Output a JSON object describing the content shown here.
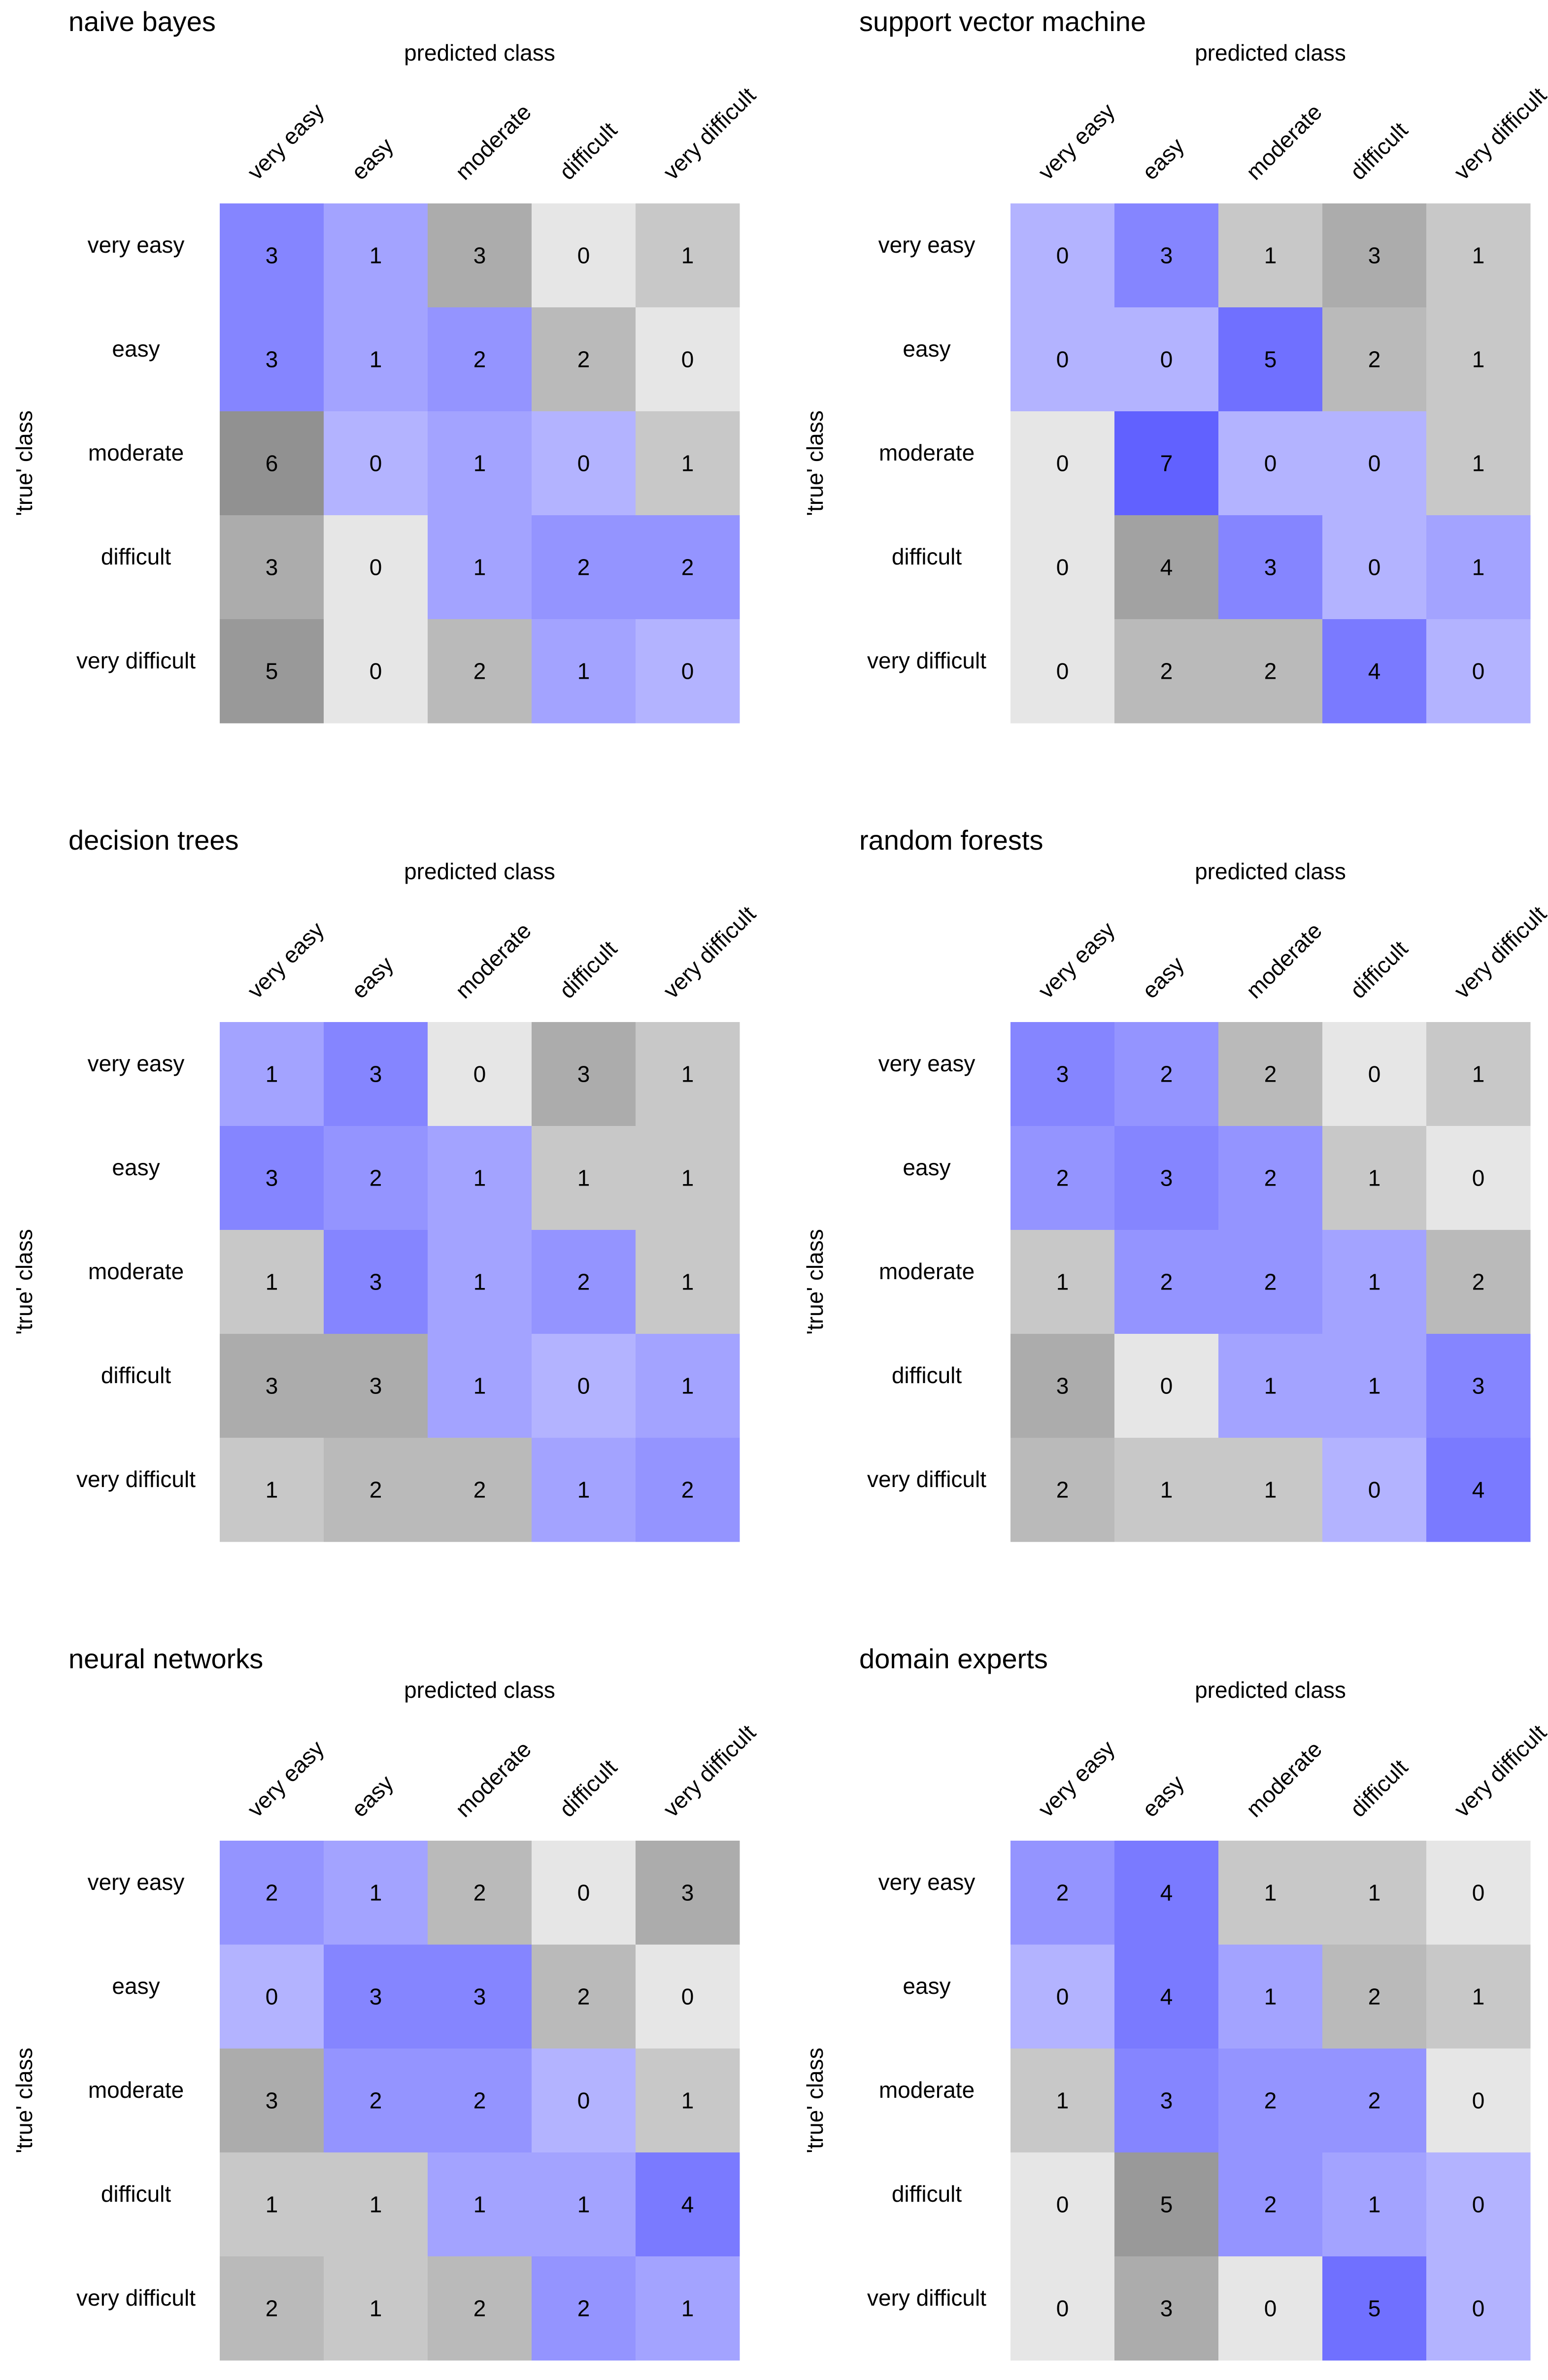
{
  "chart_data": [
    {
      "type": "heatmap",
      "title": "naive bayes",
      "xlabel": "predicted class",
      "ylabel": "'true' class",
      "x_categories": [
        "very easy",
        "easy",
        "moderate",
        "difficult",
        "very difficult"
      ],
      "y_categories": [
        "very easy",
        "easy",
        "moderate",
        "difficult",
        "very difficult"
      ],
      "values": [
        [
          3,
          1,
          3,
          0,
          1
        ],
        [
          3,
          1,
          2,
          2,
          0
        ],
        [
          6,
          0,
          1,
          0,
          1
        ],
        [
          3,
          0,
          1,
          2,
          2
        ],
        [
          5,
          0,
          2,
          1,
          0
        ]
      ],
      "diagonal": [
        [
          1,
          1,
          0,
          0,
          0
        ],
        [
          1,
          1,
          1,
          0,
          0
        ],
        [
          0,
          1,
          1,
          1,
          0
        ],
        [
          0,
          0,
          1,
          1,
          1
        ],
        [
          0,
          0,
          0,
          1,
          1
        ]
      ]
    },
    {
      "type": "heatmap",
      "title": "support vector machine",
      "xlabel": "predicted class",
      "ylabel": "'true' class",
      "x_categories": [
        "very easy",
        "easy",
        "moderate",
        "difficult",
        "very difficult"
      ],
      "y_categories": [
        "very easy",
        "easy",
        "moderate",
        "difficult",
        "very difficult"
      ],
      "values": [
        [
          0,
          3,
          1,
          3,
          1
        ],
        [
          0,
          0,
          5,
          2,
          1
        ],
        [
          0,
          7,
          0,
          0,
          1
        ],
        [
          0,
          4,
          3,
          0,
          1
        ],
        [
          0,
          2,
          2,
          4,
          0
        ]
      ],
      "diagonal": [
        [
          1,
          1,
          0,
          0,
          0
        ],
        [
          1,
          1,
          1,
          0,
          0
        ],
        [
          0,
          1,
          1,
          1,
          0
        ],
        [
          0,
          0,
          1,
          1,
          1
        ],
        [
          0,
          0,
          0,
          1,
          1
        ]
      ]
    },
    {
      "type": "heatmap",
      "title": "decision trees",
      "xlabel": "predicted class",
      "ylabel": "'true' class",
      "x_categories": [
        "very easy",
        "easy",
        "moderate",
        "difficult",
        "very difficult"
      ],
      "y_categories": [
        "very easy",
        "easy",
        "moderate",
        "difficult",
        "very difficult"
      ],
      "values": [
        [
          1,
          3,
          0,
          3,
          1
        ],
        [
          3,
          2,
          1,
          1,
          1
        ],
        [
          1,
          3,
          1,
          2,
          1
        ],
        [
          3,
          3,
          1,
          0,
          1
        ],
        [
          1,
          2,
          2,
          1,
          2
        ]
      ],
      "diagonal": [
        [
          1,
          1,
          0,
          0,
          0
        ],
        [
          1,
          1,
          1,
          0,
          0
        ],
        [
          0,
          1,
          1,
          1,
          0
        ],
        [
          0,
          0,
          1,
          1,
          1
        ],
        [
          0,
          0,
          0,
          1,
          1
        ]
      ]
    },
    {
      "type": "heatmap",
      "title": "random forests",
      "xlabel": "predicted class",
      "ylabel": "'true' class",
      "x_categories": [
        "very easy",
        "easy",
        "moderate",
        "difficult",
        "very difficult"
      ],
      "y_categories": [
        "very easy",
        "easy",
        "moderate",
        "difficult",
        "very difficult"
      ],
      "values": [
        [
          3,
          2,
          2,
          0,
          1
        ],
        [
          2,
          3,
          2,
          1,
          0
        ],
        [
          1,
          2,
          2,
          1,
          2
        ],
        [
          3,
          0,
          1,
          1,
          3
        ],
        [
          2,
          1,
          1,
          0,
          4
        ]
      ],
      "diagonal": [
        [
          1,
          1,
          0,
          0,
          0
        ],
        [
          1,
          1,
          1,
          0,
          0
        ],
        [
          0,
          1,
          1,
          1,
          0
        ],
        [
          0,
          0,
          1,
          1,
          1
        ],
        [
          0,
          0,
          0,
          1,
          1
        ]
      ]
    },
    {
      "type": "heatmap",
      "title": "neural networks",
      "xlabel": "predicted class",
      "ylabel": "'true' class",
      "x_categories": [
        "very easy",
        "easy",
        "moderate",
        "difficult",
        "very difficult"
      ],
      "y_categories": [
        "very easy",
        "easy",
        "moderate",
        "difficult",
        "very difficult"
      ],
      "values": [
        [
          2,
          1,
          2,
          0,
          3
        ],
        [
          0,
          3,
          3,
          2,
          0
        ],
        [
          3,
          2,
          2,
          0,
          1
        ],
        [
          1,
          1,
          1,
          1,
          4
        ],
        [
          2,
          1,
          2,
          2,
          1
        ]
      ],
      "diagonal": [
        [
          1,
          1,
          0,
          0,
          0
        ],
        [
          1,
          1,
          1,
          0,
          0
        ],
        [
          0,
          1,
          1,
          1,
          0
        ],
        [
          0,
          0,
          1,
          1,
          1
        ],
        [
          0,
          0,
          0,
          1,
          1
        ]
      ]
    },
    {
      "type": "heatmap",
      "title": "domain experts",
      "xlabel": "predicted class",
      "ylabel": "'true' class",
      "x_categories": [
        "very easy",
        "easy",
        "moderate",
        "difficult",
        "very difficult"
      ],
      "y_categories": [
        "very easy",
        "easy",
        "moderate",
        "difficult",
        "very difficult"
      ],
      "values": [
        [
          2,
          4,
          1,
          1,
          0
        ],
        [
          0,
          4,
          1,
          2,
          1
        ],
        [
          1,
          3,
          2,
          2,
          0
        ],
        [
          0,
          5,
          2,
          1,
          0
        ],
        [
          0,
          3,
          0,
          5,
          0
        ]
      ],
      "diagonal": [
        [
          1,
          1,
          0,
          0,
          0
        ],
        [
          1,
          1,
          1,
          0,
          0
        ],
        [
          0,
          1,
          1,
          1,
          0
        ],
        [
          0,
          0,
          1,
          1,
          1
        ],
        [
          0,
          0,
          0,
          1,
          1
        ]
      ]
    }
  ],
  "colors": {
    "blue_scale": [
      "#b3b3ff",
      "#a3a3ff",
      "#9494ff",
      "#8585ff",
      "#7a7aff",
      "#7070ff",
      "#6666ff",
      "#6161ff"
    ],
    "gray_scale": [
      "#e6e6e6",
      "#c8c8c8",
      "#bababa",
      "#acacac",
      "#a2a2a2",
      "#999999",
      "#919191",
      "#8a8a8a"
    ]
  }
}
